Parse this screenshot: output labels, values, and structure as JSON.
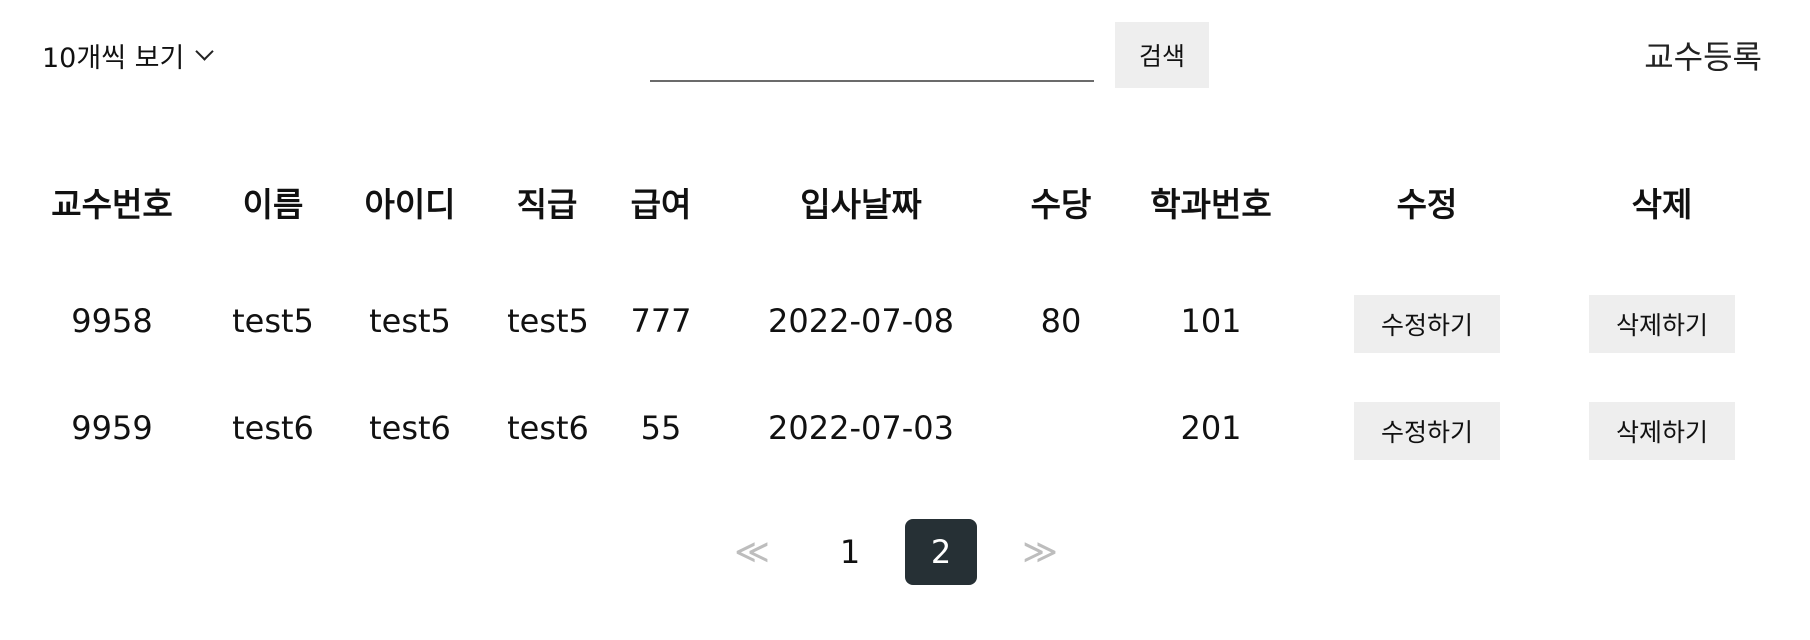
{
  "toolbar": {
    "page_size_label": "10개씩 보기",
    "search_value": "",
    "search_button_label": "검색",
    "register_label": "교수등록"
  },
  "table": {
    "columns": [
      "교수번호",
      "이름",
      "아이디",
      "직급",
      "급여",
      "입사날짜",
      "수당",
      "학과번호",
      "수정",
      "삭제"
    ],
    "rows": [
      {
        "id": "9958",
        "name": "test5",
        "userid": "test5",
        "position": "test5",
        "salary": "777",
        "hiredate": "2022-07-08",
        "allowance": "80",
        "deptno": "101",
        "edit_label": "수정하기",
        "delete_label": "삭제하기"
      },
      {
        "id": "9959",
        "name": "test6",
        "userid": "test6",
        "position": "test6",
        "salary": "55",
        "hiredate": "2022-07-03",
        "allowance": "",
        "deptno": "201",
        "edit_label": "수정하기",
        "delete_label": "삭제하기"
      }
    ]
  },
  "pagination": {
    "prev": "≪",
    "pages": [
      "1",
      "2"
    ],
    "current": "2",
    "next": "≫"
  },
  "colors": {
    "button_bg": "#eeeeee",
    "active_page_bg": "#263035",
    "active_page_text": "#ffffff",
    "arrow_color": "#bdbdbd"
  },
  "icons": {
    "page_size_dropdown": "chevron-down-icon",
    "prev": "double-chevron-left-icon",
    "next": "double-chevron-right-icon"
  }
}
